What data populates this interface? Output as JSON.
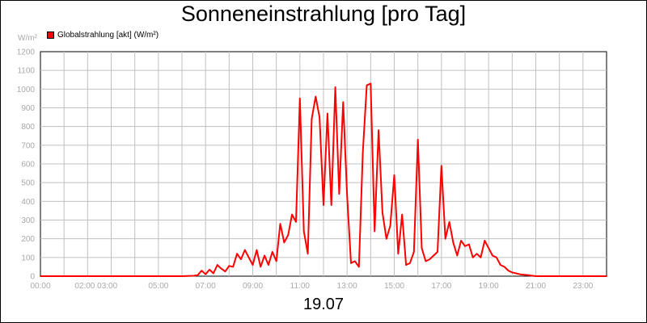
{
  "title": "Sonneneinstrahlung [pro Tag]",
  "unit_label": "W/m²",
  "date_label": "19.07",
  "colors": {
    "series": "#ff0000",
    "grid": "#c0c0c0",
    "tick_text": "#a8a8a8"
  },
  "chart_data": {
    "type": "line",
    "title": "Sonneneinstrahlung [pro Tag]",
    "ylabel": "W/m²",
    "xlabel": "19.07",
    "ylim": [
      0,
      1200
    ],
    "xlim_hours": [
      0,
      24
    ],
    "grid": true,
    "legend": "top-left",
    "y_ticks": [
      "0",
      "100",
      "200",
      "300",
      "400",
      "500",
      "600",
      "700",
      "800",
      "900",
      "1000",
      "1100",
      "1200"
    ],
    "x_tick_labels": [
      "00:00",
      "02:00 03:00",
      "05:00",
      "07:00",
      "09:00",
      "11:00",
      "13:00",
      "15:00",
      "17:00",
      "19:00",
      "21:00",
      "23:00"
    ],
    "series": [
      {
        "name": "Globalstrahlung [akt] (W/m²)",
        "color": "#ff0000",
        "x": [
          "00:00",
          "06:00",
          "06:30",
          "06:40",
          "06:50",
          "07:00",
          "07:10",
          "07:20",
          "07:30",
          "07:40",
          "07:50",
          "08:00",
          "08:10",
          "08:20",
          "08:30",
          "08:40",
          "08:50",
          "09:00",
          "09:10",
          "09:20",
          "09:30",
          "09:40",
          "09:50",
          "10:00",
          "10:10",
          "10:20",
          "10:30",
          "10:40",
          "10:50",
          "11:00",
          "11:10",
          "11:20",
          "11:30",
          "11:40",
          "11:50",
          "12:00",
          "12:10",
          "12:20",
          "12:30",
          "12:40",
          "12:50",
          "13:00",
          "13:10",
          "13:20",
          "13:30",
          "13:40",
          "13:50",
          "14:00",
          "14:10",
          "14:20",
          "14:30",
          "14:40",
          "14:50",
          "15:00",
          "15:10",
          "15:20",
          "15:30",
          "15:40",
          "15:50",
          "16:00",
          "16:10",
          "16:20",
          "16:30",
          "16:40",
          "16:50",
          "17:00",
          "17:10",
          "17:20",
          "17:30",
          "17:40",
          "17:50",
          "18:00",
          "18:10",
          "18:20",
          "18:30",
          "18:40",
          "18:50",
          "19:00",
          "19:10",
          "19:20",
          "19:30",
          "19:40",
          "19:50",
          "20:00",
          "20:20",
          "20:40",
          "21:00",
          "21:30",
          "24:00"
        ],
        "values": [
          0,
          0,
          2,
          5,
          30,
          10,
          35,
          15,
          60,
          40,
          25,
          55,
          50,
          120,
          90,
          140,
          100,
          60,
          140,
          50,
          110,
          60,
          130,
          80,
          280,
          180,
          220,
          330,
          290,
          950,
          240,
          120,
          840,
          960,
          850,
          380,
          870,
          380,
          1010,
          440,
          930,
          430,
          70,
          80,
          50,
          660,
          1020,
          1030,
          240,
          780,
          340,
          200,
          270,
          540,
          120,
          330,
          60,
          70,
          130,
          730,
          150,
          80,
          90,
          110,
          130,
          590,
          200,
          290,
          180,
          110,
          190,
          160,
          170,
          100,
          120,
          100,
          190,
          150,
          110,
          100,
          60,
          50,
          30,
          20,
          10,
          5,
          0,
          0,
          0
        ]
      }
    ]
  }
}
